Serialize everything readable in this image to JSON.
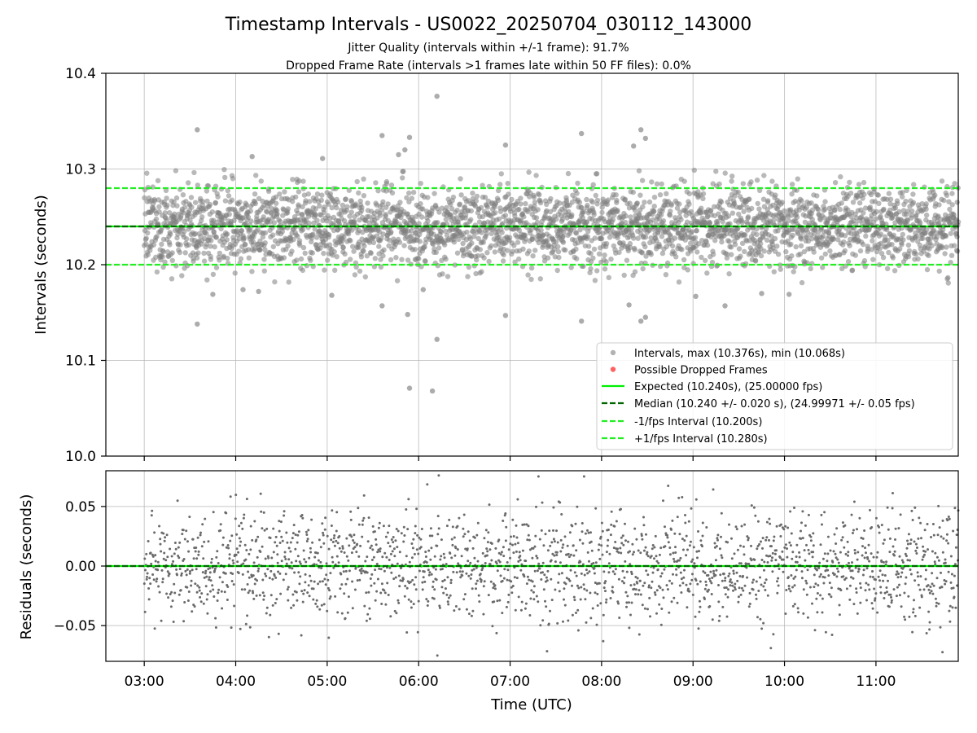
{
  "figure": {
    "title": "Timestamp Intervals - US0022_20250704_030112_143000",
    "subtitle_lines": [
      "Jitter Quality (intervals within +/-1 frame): 91.7%",
      "Dropped Frame Rate (intervals >1 frames late within 50 FF files): 0.0%"
    ]
  },
  "chart_data": [
    {
      "type": "scatter",
      "panel": "top",
      "xlabel": "",
      "ylabel": "Intervals (seconds)",
      "x_unit": "hours (UTC)",
      "xlim": [
        2.58,
        11.9
      ],
      "ylim": [
        10.0,
        10.4
      ],
      "y_ticks": [
        10.0,
        10.1,
        10.2,
        10.3,
        10.4
      ],
      "y_tick_labels": [
        "10.0",
        "10.1",
        "10.2",
        "10.3",
        "10.4"
      ],
      "grid": true,
      "legend_position": "lower-right",
      "series": [
        {
          "name": "Intervals, max (10.376s), min (10.068s)",
          "kind": "points",
          "color": "#808080",
          "x_range": [
            3.0,
            11.9
          ],
          "n_points": 3140,
          "center": 10.24,
          "spread_sd": 0.021,
          "outliers": [
            {
              "x": 3.58,
              "y": 10.341
            },
            {
              "x": 3.58,
              "y": 10.138
            },
            {
              "x": 3.75,
              "y": 10.169
            },
            {
              "x": 4.18,
              "y": 10.313
            },
            {
              "x": 4.25,
              "y": 10.172
            },
            {
              "x": 4.08,
              "y": 10.174
            },
            {
              "x": 4.95,
              "y": 10.311
            },
            {
              "x": 5.05,
              "y": 10.168
            },
            {
              "x": 5.6,
              "y": 10.335
            },
            {
              "x": 5.6,
              "y": 10.157
            },
            {
              "x": 5.78,
              "y": 10.315
            },
            {
              "x": 5.9,
              "y": 10.333
            },
            {
              "x": 5.85,
              "y": 10.32
            },
            {
              "x": 5.9,
              "y": 10.071
            },
            {
              "x": 5.88,
              "y": 10.148
            },
            {
              "x": 6.15,
              "y": 10.068
            },
            {
              "x": 6.2,
              "y": 10.376
            },
            {
              "x": 6.2,
              "y": 10.122
            },
            {
              "x": 6.05,
              "y": 10.174
            },
            {
              "x": 6.95,
              "y": 10.325
            },
            {
              "x": 6.95,
              "y": 10.147
            },
            {
              "x": 7.78,
              "y": 10.337
            },
            {
              "x": 7.78,
              "y": 10.141
            },
            {
              "x": 8.35,
              "y": 10.324
            },
            {
              "x": 8.43,
              "y": 10.341
            },
            {
              "x": 8.48,
              "y": 10.332
            },
            {
              "x": 8.3,
              "y": 10.158
            },
            {
              "x": 8.43,
              "y": 10.141
            },
            {
              "x": 8.48,
              "y": 10.145
            },
            {
              "x": 9.35,
              "y": 10.157
            },
            {
              "x": 9.03,
              "y": 10.167
            },
            {
              "x": 10.05,
              "y": 10.169
            },
            {
              "x": 9.75,
              "y": 10.17
            }
          ]
        },
        {
          "name": "Possible Dropped Frames",
          "kind": "points",
          "color": "#ff5050",
          "count": 0
        },
        {
          "name": "Expected (10.240s), (25.00000 fps)",
          "kind": "hline",
          "y": 10.24,
          "color": "#00ee00",
          "style": "solid"
        },
        {
          "name": "Median (10.240 +/- 0.020 s), (24.99971 +/- 0.05 fps)",
          "kind": "hline",
          "y": 10.24,
          "color": "#006400",
          "style": "dashed"
        },
        {
          "name": "-1/fps Interval (10.200s)",
          "kind": "hline",
          "y": 10.2,
          "color": "#22ee22",
          "style": "dashed"
        },
        {
          "name": "+1/fps Interval (10.280s)",
          "kind": "hline",
          "y": 10.28,
          "color": "#22ee22",
          "style": "dashed"
        }
      ]
    },
    {
      "type": "scatter",
      "panel": "bottom",
      "xlabel": "Time (UTC)",
      "ylabel": "Residuals (seconds)",
      "x_unit": "hours (UTC)",
      "xlim": [
        2.58,
        11.9
      ],
      "ylim": [
        -0.08,
        0.08
      ],
      "y_ticks": [
        -0.05,
        0.0,
        0.05
      ],
      "y_tick_labels": [
        "−0.05",
        "0.00",
        "0.05"
      ],
      "x_ticks": [
        3,
        4,
        5,
        6,
        7,
        8,
        9,
        10,
        11
      ],
      "x_tick_labels": [
        "03:00",
        "04:00",
        "05:00",
        "06:00",
        "07:00",
        "08:00",
        "09:00",
        "10:00",
        "11:00"
      ],
      "grid": true,
      "series": [
        {
          "kind": "points",
          "color": "#808080",
          "x_range": [
            3.0,
            11.9
          ],
          "n_points": 2000,
          "center": 0.0,
          "spread_sd": 0.024
        },
        {
          "kind": "hline",
          "y": 0.0,
          "color": "#00ee00",
          "style": "solid"
        },
        {
          "kind": "hline",
          "y": 0.0,
          "color": "#006400",
          "style": "dashed"
        }
      ]
    }
  ]
}
